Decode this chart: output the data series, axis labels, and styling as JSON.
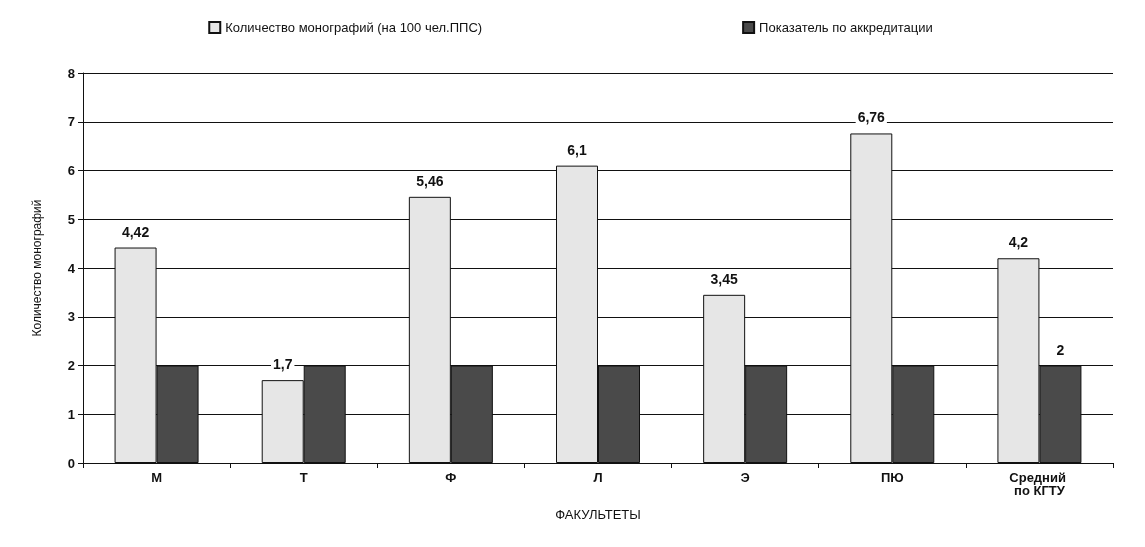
{
  "chart_data": {
    "type": "bar",
    "xlabel": "ФАКУЛЬТЕТЫ",
    "ylabel": "Количество монографий",
    "categories": [
      "М",
      "Т",
      "Ф",
      "Л",
      "Э",
      "ПЮ",
      "Средний по КГТУ"
    ],
    "series": [
      {
        "name": "Количество монографий (на 100 чел.ППС)",
        "color": "#e6e6e6",
        "values": [
          4.42,
          1.7,
          5.46,
          6.1,
          3.45,
          6.76,
          4.2
        ],
        "value_labels": [
          "4,42",
          "1,7",
          "5,46",
          "6,1",
          "3,45",
          "6,76",
          "4,2"
        ]
      },
      {
        "name": "Показатель по аккредитации",
        "color": "#4a4a4a",
        "values": [
          2,
          2,
          2,
          2,
          2,
          2,
          2
        ],
        "value_labels": [
          null,
          null,
          null,
          null,
          null,
          null,
          "2"
        ]
      }
    ],
    "ylim": [
      0,
      8
    ],
    "yticks": [
      0,
      1,
      2,
      3,
      4,
      5,
      6,
      7,
      8
    ],
    "grid": "y",
    "legend": "top"
  }
}
